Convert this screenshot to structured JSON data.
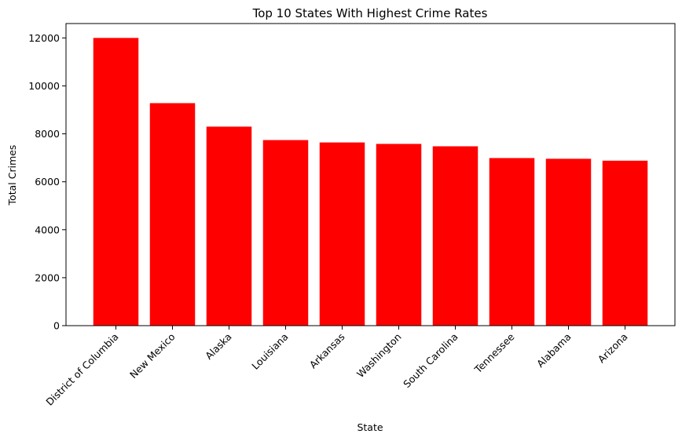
{
  "chart_data": {
    "type": "bar",
    "title": "Top 10 States With Highest Crime Rates",
    "xlabel": "State",
    "ylabel": "Total Crimes",
    "categories": [
      "District of Columbia",
      "New Mexico",
      "Alaska",
      "Louisiana",
      "Arkansas",
      "Washington",
      "South Carolina",
      "Tennessee",
      "Alabama",
      "Arizona"
    ],
    "values": [
      12000,
      9280,
      8300,
      7740,
      7640,
      7580,
      7480,
      6990,
      6960,
      6880
    ],
    "ylim": [
      0,
      12600
    ],
    "yticks": [
      0,
      2000,
      4000,
      6000,
      8000,
      10000,
      12000
    ],
    "bar_color": "#ff0000",
    "grid": false,
    "legend": false
  }
}
